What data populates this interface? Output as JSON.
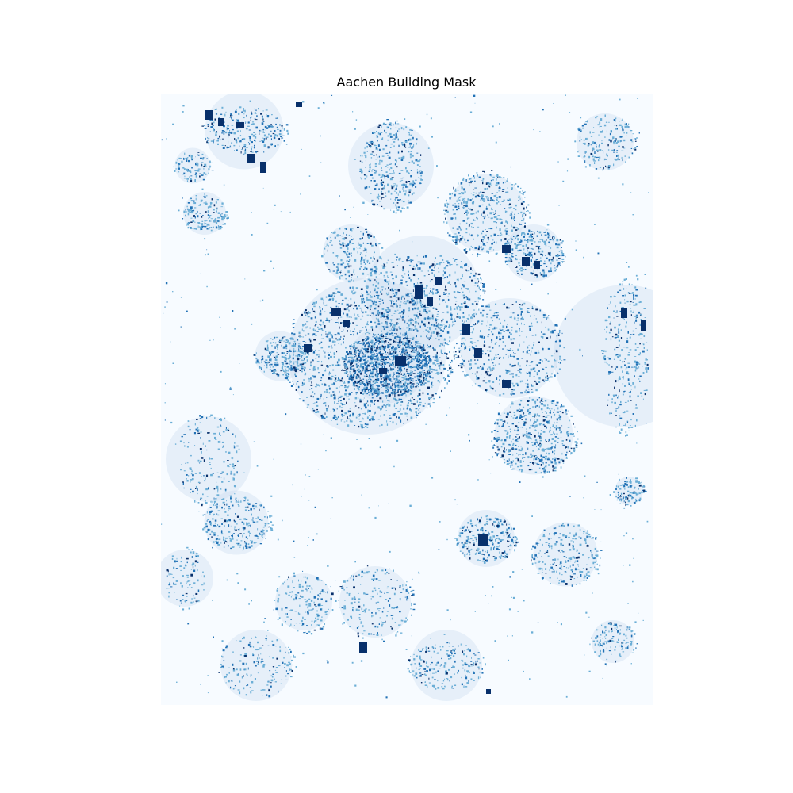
{
  "title": "Aachen Building Mask",
  "colors": {
    "background": "#f7fbff",
    "building_dense": "#08306b",
    "building_mid": "#2171b5",
    "building_light": "#6baed6",
    "building_faint": "#c6dbef"
  },
  "colormap": "Blues"
}
